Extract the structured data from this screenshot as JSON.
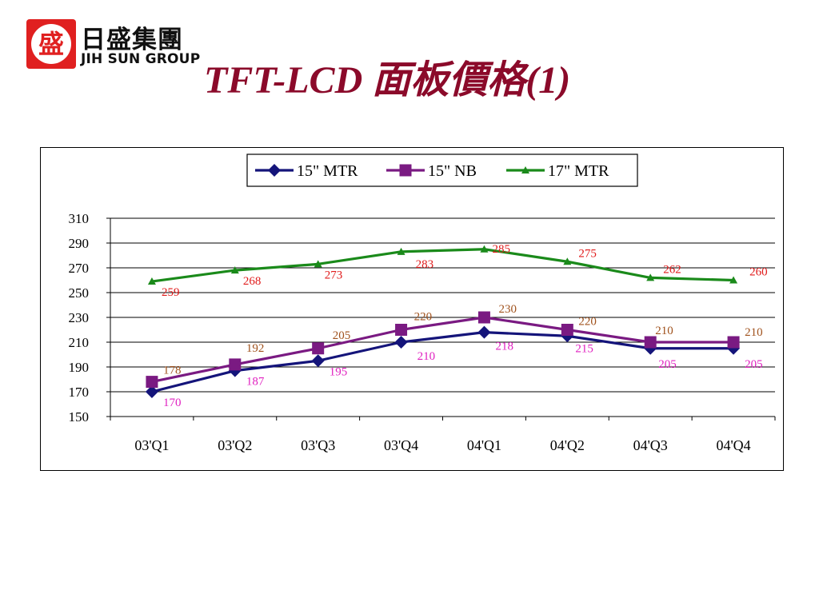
{
  "header": {
    "logo_cn": "日盛集團",
    "logo_en": "JIH SUN GROUP",
    "logo_seal": "盛",
    "title": "TFT-LCD 面板價格(1)"
  },
  "chart_data": {
    "type": "line",
    "title": "",
    "xlabel": "",
    "ylabel": "",
    "categories": [
      "03'Q1",
      "03'Q2",
      "03'Q3",
      "03'Q4",
      "04'Q1",
      "04'Q2",
      "04'Q3",
      "04'Q4"
    ],
    "ylim": [
      150,
      310
    ],
    "yticks": [
      150,
      170,
      190,
      210,
      230,
      250,
      270,
      290,
      310
    ],
    "grid": true,
    "legend_position": "top-center",
    "series": [
      {
        "name": "15\" MTR",
        "values": [
          170,
          187,
          195,
          210,
          218,
          215,
          205,
          205
        ],
        "color": "#14147a",
        "marker": "diamond",
        "label_color": "#e020c0"
      },
      {
        "name": "15\" NB",
        "values": [
          178,
          192,
          205,
          220,
          230,
          220,
          210,
          210
        ],
        "color": "#7a1a82",
        "marker": "square",
        "label_color": "#a0521d"
      },
      {
        "name": "17\" MTR",
        "values": [
          259,
          268,
          273,
          283,
          285,
          275,
          262,
          260
        ],
        "color": "#1a8a1a",
        "marker": "triangle",
        "label_color": "#e01a1a"
      }
    ]
  }
}
